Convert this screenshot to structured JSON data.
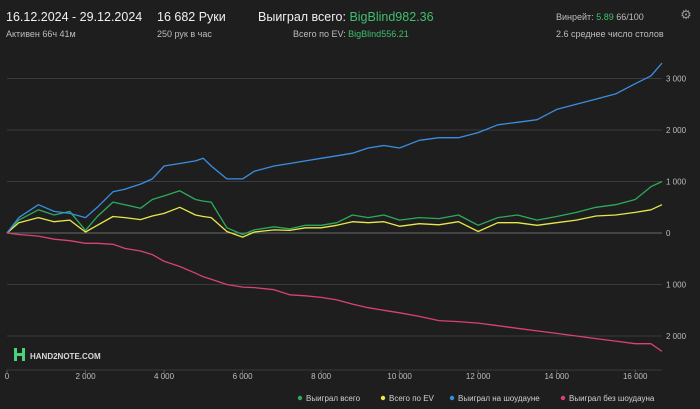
{
  "header": {
    "date_range": "16.12.2024 - 29.12.2024",
    "active_time": "Активен 66ч 41м",
    "hands": "16 682 Руки",
    "hands_per_hour": "250 рук в час",
    "won_total_label": "Выиграл всего:",
    "won_total_value": "BigBlind982.36",
    "ev_total_label": "Всего по EV:",
    "ev_total_value": "BigBlind556.21",
    "winrate_label": "Винрейт:",
    "winrate_value": "5.89",
    "winrate_unit": "66/100",
    "avg_tables": "2.6 среднее число столов",
    "settings_icon": "gear-icon"
  },
  "logo": {
    "text": "HAND2NOTE.COM",
    "icon": "hand2note-logo-icon"
  },
  "colors": {
    "background": "#1e1e1e",
    "won_total": "#2eaa5c",
    "ev": "#e8e84a",
    "showdown": "#3b8ee0",
    "non_showdown": "#d9436d",
    "accent_green": "#3fbf6e"
  },
  "chart_data": {
    "type": "line",
    "x_ticks": [
      "0",
      "2 000",
      "4 000",
      "6 000",
      "8 000",
      "10 000",
      "12 000",
      "14 000",
      "16 000"
    ],
    "y_ticks": [
      {
        "value": 3000,
        "label": "3 000"
      },
      {
        "value": 2000,
        "label": "2 000"
      },
      {
        "value": 1000,
        "label": "1 000"
      },
      {
        "value": 0,
        "label": "0"
      },
      {
        "value": -1000,
        "label": "1 000"
      },
      {
        "value": -2000,
        "label": "2 000"
      }
    ],
    "xlim": [
      0,
      16682
    ],
    "ylim": [
      -2400,
      3300
    ],
    "grid": true,
    "legend_position": "bottom-right",
    "series": [
      {
        "name": "Выиграл всего",
        "color": "#2eaa5c",
        "x": [
          0,
          300,
          800,
          1200,
          1600,
          2000,
          2300,
          2700,
          3000,
          3400,
          3700,
          4000,
          4400,
          4800,
          5000,
          5200,
          5600,
          6000,
          6300,
          6800,
          7200,
          7600,
          8000,
          8400,
          8800,
          9200,
          9600,
          10000,
          10500,
          11000,
          11500,
          12000,
          12500,
          13000,
          13500,
          14000,
          14500,
          15000,
          15500,
          16000,
          16400,
          16682
        ],
        "y": [
          0,
          250,
          450,
          350,
          420,
          50,
          320,
          600,
          550,
          480,
          650,
          720,
          820,
          650,
          620,
          600,
          100,
          -30,
          60,
          120,
          80,
          150,
          150,
          200,
          350,
          300,
          350,
          250,
          300,
          280,
          350,
          150,
          300,
          350,
          250,
          320,
          400,
          500,
          550,
          650,
          900,
          1000
        ]
      },
      {
        "name": "Всего по EV",
        "color": "#e8e84a",
        "x": [
          0,
          300,
          800,
          1200,
          1600,
          2000,
          2300,
          2700,
          3000,
          3400,
          3700,
          4000,
          4400,
          4800,
          5000,
          5200,
          5600,
          6000,
          6300,
          6800,
          7200,
          7600,
          8000,
          8400,
          8800,
          9200,
          9600,
          10000,
          10500,
          11000,
          11500,
          12000,
          12500,
          13000,
          13500,
          14000,
          14500,
          15000,
          15500,
          16000,
          16400,
          16682
        ],
        "y": [
          0,
          200,
          300,
          220,
          250,
          20,
          150,
          320,
          300,
          260,
          330,
          380,
          500,
          350,
          320,
          300,
          30,
          -80,
          20,
          60,
          50,
          100,
          100,
          150,
          220,
          200,
          220,
          130,
          180,
          160,
          220,
          30,
          200,
          200,
          150,
          200,
          250,
          330,
          350,
          400,
          450,
          550
        ]
      },
      {
        "name": "Выиграл на шоудауне",
        "color": "#3b8ee0",
        "x": [
          0,
          300,
          800,
          1200,
          1600,
          2000,
          2300,
          2700,
          3000,
          3400,
          3700,
          4000,
          4400,
          4800,
          5000,
          5200,
          5600,
          6000,
          6300,
          6800,
          7200,
          7600,
          8000,
          8400,
          8800,
          9200,
          9600,
          10000,
          10500,
          11000,
          11500,
          12000,
          12500,
          13000,
          13500,
          14000,
          14500,
          15000,
          15500,
          16000,
          16400,
          16682
        ],
        "y": [
          0,
          300,
          550,
          420,
          380,
          300,
          500,
          800,
          850,
          950,
          1050,
          1300,
          1350,
          1400,
          1450,
          1300,
          1050,
          1050,
          1200,
          1300,
          1350,
          1400,
          1450,
          1500,
          1550,
          1650,
          1700,
          1650,
          1800,
          1850,
          1850,
          1950,
          2100,
          2150,
          2200,
          2400,
          2500,
          2600,
          2700,
          2900,
          3050,
          3300
        ]
      },
      {
        "name": "Выиграл без шоудауна",
        "color": "#d9436d",
        "x": [
          0,
          300,
          800,
          1200,
          1600,
          2000,
          2300,
          2700,
          3000,
          3400,
          3700,
          4000,
          4400,
          4800,
          5000,
          5200,
          5600,
          6000,
          6300,
          6800,
          7200,
          7600,
          8000,
          8400,
          8800,
          9200,
          9600,
          10000,
          10500,
          11000,
          11500,
          12000,
          12500,
          13000,
          13500,
          14000,
          14500,
          15000,
          15500,
          16000,
          16400,
          16682
        ],
        "y": [
          0,
          -30,
          -60,
          -120,
          -150,
          -200,
          -200,
          -220,
          -300,
          -350,
          -420,
          -550,
          -650,
          -780,
          -850,
          -900,
          -1000,
          -1050,
          -1060,
          -1100,
          -1200,
          -1220,
          -1250,
          -1300,
          -1380,
          -1450,
          -1500,
          -1550,
          -1620,
          -1700,
          -1720,
          -1750,
          -1800,
          -1850,
          -1900,
          -1950,
          -2000,
          -2050,
          -2100,
          -2150,
          -2150,
          -2300
        ]
      }
    ]
  }
}
